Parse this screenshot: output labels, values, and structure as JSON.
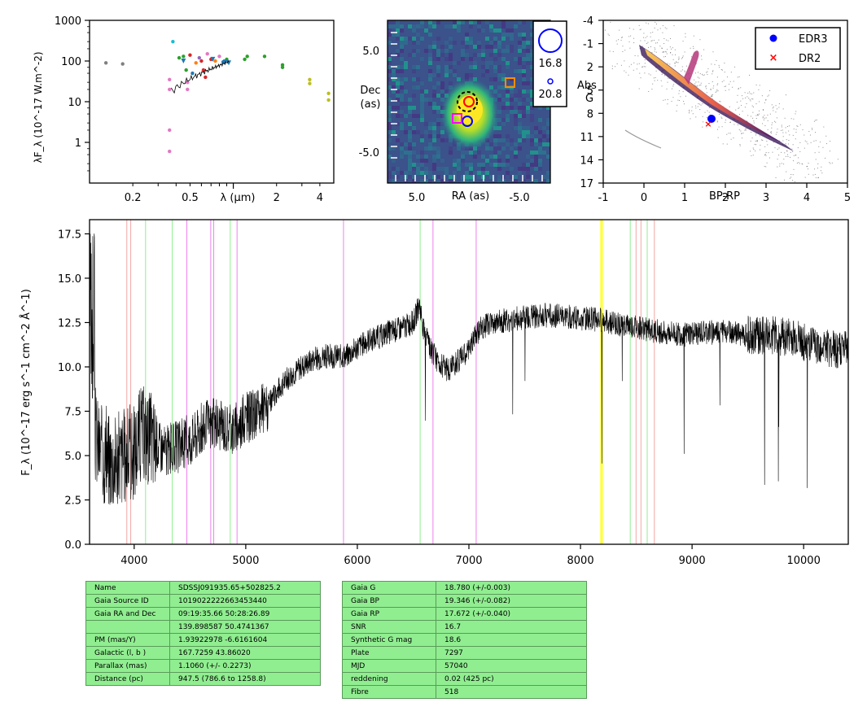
{
  "sed": {
    "ylabel": "λF_λ (10^-17 W.m^-2)",
    "yticks": [
      {
        "v": 1,
        "label": "1"
      },
      {
        "v": 10,
        "label": "10"
      },
      {
        "v": 100,
        "label": "100"
      },
      {
        "v": 1000,
        "label": "1000"
      }
    ],
    "xticks": [
      {
        "v": 0.2,
        "label": "0.2"
      },
      {
        "v": 0.5,
        "label": "0.5"
      },
      {
        "v": 2,
        "label": "2"
      },
      {
        "v": 4,
        "label": "4"
      }
    ],
    "xlabel": "λ (μm)"
  },
  "image_panel": {
    "xlabel": "RA (as)",
    "ylabel_line1": "Dec",
    "ylabel_line2": "(as)",
    "xticks": [
      "5.0",
      "-5.0"
    ],
    "yticks": [
      "5.0",
      "-5.0"
    ],
    "mag_bright": "16.8",
    "mag_faint": "20.8"
  },
  "cmd": {
    "xlabel": "BP-RP",
    "ylabel_line1": "Abs",
    "ylabel_line2": "G",
    "xticks": [
      "-1",
      "0",
      "1",
      "2",
      "3",
      "4",
      "5"
    ],
    "yticks": [
      "-4",
      "-1",
      "2",
      "5",
      "8",
      "11",
      "14",
      "17"
    ],
    "legend": [
      {
        "label": "EDR3",
        "color": "#0000ff",
        "marker": "dot"
      },
      {
        "label": "DR2",
        "color": "#ff0000",
        "marker": "x"
      }
    ]
  },
  "chart_data": {
    "type": "line",
    "ylabel": "F_λ (10^-17 erg s^-1 cm^-2 Å^-1)",
    "xlim": [
      3600,
      10400
    ],
    "ylim": [
      0,
      18.3
    ],
    "xticks": [
      4000,
      5000,
      6000,
      7000,
      8000,
      9000,
      10000
    ],
    "yticks": [
      "0.0",
      "2.5",
      "5.0",
      "7.5",
      "10.0",
      "12.5",
      "15.0",
      "17.5"
    ],
    "continuum": [
      [
        3600,
        7.5
      ],
      [
        3700,
        5.2
      ],
      [
        3800,
        4.8
      ],
      [
        3900,
        5.0
      ],
      [
        4000,
        5.2
      ],
      [
        4050,
        6.3
      ],
      [
        4100,
        6.3
      ],
      [
        4200,
        5.7
      ],
      [
        4300,
        5.3
      ],
      [
        4400,
        5.5
      ],
      [
        4500,
        5.9
      ],
      [
        4600,
        6.5
      ],
      [
        4700,
        6.8
      ],
      [
        4800,
        6.7
      ],
      [
        4900,
        6.5
      ],
      [
        5000,
        7.1
      ],
      [
        5100,
        7.3
      ],
      [
        5200,
        7.8
      ],
      [
        5300,
        8.8
      ],
      [
        5400,
        9.5
      ],
      [
        5500,
        10.0
      ],
      [
        5600,
        10.4
      ],
      [
        5700,
        10.6
      ],
      [
        5800,
        10.6
      ],
      [
        5900,
        10.6
      ],
      [
        6000,
        11.1
      ],
      [
        6100,
        11.5
      ],
      [
        6200,
        11.7
      ],
      [
        6300,
        12.0
      ],
      [
        6400,
        12.2
      ],
      [
        6500,
        12.5
      ],
      [
        6560,
        13.5
      ],
      [
        6600,
        11.8
      ],
      [
        6700,
        10.5
      ],
      [
        6800,
        9.8
      ],
      [
        6900,
        10.3
      ],
      [
        7000,
        11.0
      ],
      [
        7100,
        12.2
      ],
      [
        7300,
        12.6
      ],
      [
        7500,
        12.8
      ],
      [
        7700,
        12.9
      ],
      [
        7900,
        12.8
      ],
      [
        8100,
        12.7
      ],
      [
        8300,
        12.5
      ],
      [
        8500,
        12.2
      ],
      [
        8700,
        12.0
      ],
      [
        8900,
        11.8
      ],
      [
        9100,
        11.9
      ],
      [
        9300,
        12.0
      ],
      [
        9500,
        11.8
      ],
      [
        9700,
        11.8
      ],
      [
        9900,
        11.6
      ],
      [
        10100,
        11.2
      ],
      [
        10300,
        11.0
      ],
      [
        10400,
        11.0
      ]
    ],
    "vlines": [
      {
        "x": 3934,
        "color": "#f4a5a5"
      },
      {
        "x": 3969,
        "color": "#f4a5a5"
      },
      {
        "x": 4102,
        "color": "#90ee90"
      },
      {
        "x": 4341,
        "color": "#90ee90"
      },
      {
        "x": 4472,
        "color": "#ee82ee"
      },
      {
        "x": 4686,
        "color": "#ee82ee"
      },
      {
        "x": 4713,
        "color": "#ee82ee"
      },
      {
        "x": 4861,
        "color": "#90ee90"
      },
      {
        "x": 4922,
        "color": "#ee82ee"
      },
      {
        "x": 5876,
        "color": "#ee82ee"
      },
      {
        "x": 6563,
        "color": "#90ee90"
      },
      {
        "x": 6678,
        "color": "#ee82ee"
      },
      {
        "x": 7065,
        "color": "#ee82ee"
      },
      {
        "x": 8183,
        "color": "#ffff33"
      },
      {
        "x": 8195,
        "color": "#ffff33"
      },
      {
        "x": 8446,
        "color": "#90ee90"
      },
      {
        "x": 8498,
        "color": "#f4a5a5"
      },
      {
        "x": 8542,
        "color": "#f4a5a5"
      },
      {
        "x": 8598,
        "color": "#90ee90"
      },
      {
        "x": 8662,
        "color": "#f4a5a5"
      }
    ]
  },
  "table_left": [
    {
      "k": "Name",
      "v": "SDSSJ091935.65+502825.2"
    },
    {
      "k": "Gaia Source ID",
      "v": "1019022222663453440"
    },
    {
      "k": "Gaia RA and Dec",
      "v": "09:19:35.66    50:28:26.89"
    },
    {
      "k": "",
      "v": "139.898587    50.4741367"
    },
    {
      "k": "PM (mas/Y)",
      "v": "1.93922978    -6.6161604"
    },
    {
      "k": "Galactic (l, b )",
      "v": "167.7259    43.86020"
    },
    {
      "k": "Parallax (mas)",
      "v": "1.1060 (+/- 0.2273)"
    },
    {
      "k": "Distance (pc)",
      "v": "947.5 (786.6 to 1258.8)"
    }
  ],
  "table_right": [
    {
      "k": "Gaia G",
      "v": "18.780 (+/-0.003)"
    },
    {
      "k": "Gaia BP",
      "v": "19.346 (+/-0.082)"
    },
    {
      "k": "Gaia RP",
      "v": "17.672 (+/-0.040)"
    },
    {
      "k": "SNR",
      "v": "16.7"
    },
    {
      "k": "Synthetic G mag",
      "v": "18.6"
    },
    {
      "k": "Plate",
      "v": "7297"
    },
    {
      "k": "MJD",
      "v": "57040"
    },
    {
      "k": "reddening",
      "v": "0.02 (425 pc)"
    },
    {
      "k": "Fibre",
      "v": "518"
    }
  ],
  "colors": {
    "table_bg": "#90ee90",
    "spectrum": "#000000"
  }
}
